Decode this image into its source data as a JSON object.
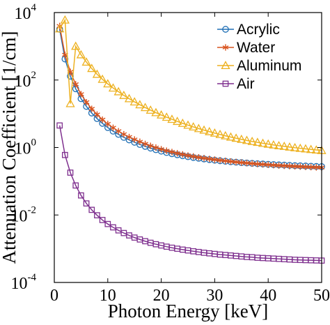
{
  "chart_data": {
    "type": "line",
    "xlabel": "Photon Energy [keV]",
    "ylabel": "Attenuation Coefficient [1/cm]",
    "xlim": [
      0,
      50
    ],
    "ylim": [
      0.0001,
      10000
    ],
    "yscale": "log",
    "xticks": [
      0,
      10,
      20,
      30,
      40,
      50
    ],
    "yticks": [
      {
        "value": 0.0001,
        "base": "10",
        "exp": "-4"
      },
      {
        "value": 0.01,
        "base": "10",
        "exp": "-2"
      },
      {
        "value": 1,
        "base": "10",
        "exp": "0"
      },
      {
        "value": 100,
        "base": "10",
        "exp": "2"
      },
      {
        "value": 10000,
        "base": "10",
        "exp": "4"
      }
    ],
    "grid": false,
    "legend_position": "top-right",
    "x": [
      1,
      2,
      3,
      4,
      5,
      6,
      7,
      8,
      9,
      10,
      11,
      12,
      13,
      14,
      15,
      16,
      17,
      18,
      19,
      20,
      21,
      22,
      23,
      24,
      25,
      26,
      27,
      28,
      29,
      30,
      31,
      32,
      33,
      34,
      35,
      36,
      37,
      38,
      39,
      40,
      41,
      42,
      43,
      44,
      45,
      46,
      47,
      48,
      49,
      50
    ],
    "series": [
      {
        "name": "Acrylic",
        "color": "#1f6fb5",
        "marker": "circle",
        "values": [
          3200,
          420,
          130,
          55,
          28,
          16.5,
          10.5,
          7.2,
          5.2,
          3.9,
          3.05,
          2.45,
          2.0,
          1.68,
          1.43,
          1.23,
          1.08,
          0.96,
          0.86,
          0.78,
          0.71,
          0.655,
          0.61,
          0.57,
          0.535,
          0.505,
          0.48,
          0.458,
          0.438,
          0.42,
          0.405,
          0.391,
          0.378,
          0.367,
          0.357,
          0.348,
          0.34,
          0.332,
          0.325,
          0.318,
          0.312,
          0.306,
          0.301,
          0.296,
          0.291,
          0.287,
          0.283,
          0.279,
          0.275,
          0.272
        ]
      },
      {
        "name": "Water",
        "color": "#d9541e",
        "marker": "asterisk",
        "values": [
          4000,
          560,
          175,
          75,
          38,
          22,
          14,
          9.5,
          6.7,
          5.0,
          3.85,
          3.05,
          2.47,
          2.05,
          1.73,
          1.48,
          1.28,
          1.12,
          0.995,
          0.89,
          0.805,
          0.735,
          0.675,
          0.625,
          0.58,
          0.545,
          0.512,
          0.484,
          0.46,
          0.438,
          0.418,
          0.4,
          0.385,
          0.371,
          0.358,
          0.346,
          0.335,
          0.325,
          0.316,
          0.308,
          0.3,
          0.293,
          0.287,
          0.281,
          0.276,
          0.271,
          0.266,
          0.262,
          0.258,
          0.255
        ]
      },
      {
        "name": "Aluminum",
        "color": "#edb120",
        "marker": "triangle",
        "values": [
          3300,
          6000,
          20,
          1000,
          560,
          340,
          220,
          148,
          105,
          77,
          58,
          45,
          35,
          28,
          22.5,
          18.5,
          15.3,
          12.8,
          10.8,
          9.2,
          7.9,
          6.85,
          5.95,
          5.2,
          4.6,
          4.08,
          3.64,
          3.27,
          2.95,
          2.67,
          2.43,
          2.22,
          2.04,
          1.88,
          1.74,
          1.62,
          1.51,
          1.42,
          1.33,
          1.26,
          1.19,
          1.13,
          1.08,
          1.03,
          0.985,
          0.945,
          0.91,
          0.875,
          0.845,
          0.815
        ]
      },
      {
        "name": "Air",
        "color": "#7e2f8e",
        "marker": "square",
        "values": [
          4.5,
          0.6,
          0.18,
          0.075,
          0.038,
          0.022,
          0.0142,
          0.0098,
          0.0071,
          0.0054,
          0.0043,
          0.0035,
          0.00292,
          0.00248,
          0.00214,
          0.00188,
          0.00167,
          0.0015,
          0.00136,
          0.00125,
          0.00115,
          0.00107,
          0.001,
          0.00094,
          0.00089,
          0.00084,
          0.0008,
          0.00076,
          0.00073,
          0.0007,
          0.00067,
          0.00065,
          0.00063,
          0.00061,
          0.00059,
          0.00057,
          0.00056,
          0.00054,
          0.00053,
          0.00052,
          0.00051,
          0.0005,
          0.00049,
          0.00048,
          0.00047,
          0.000465,
          0.00046,
          0.000455,
          0.00045,
          0.000445
        ]
      }
    ]
  }
}
